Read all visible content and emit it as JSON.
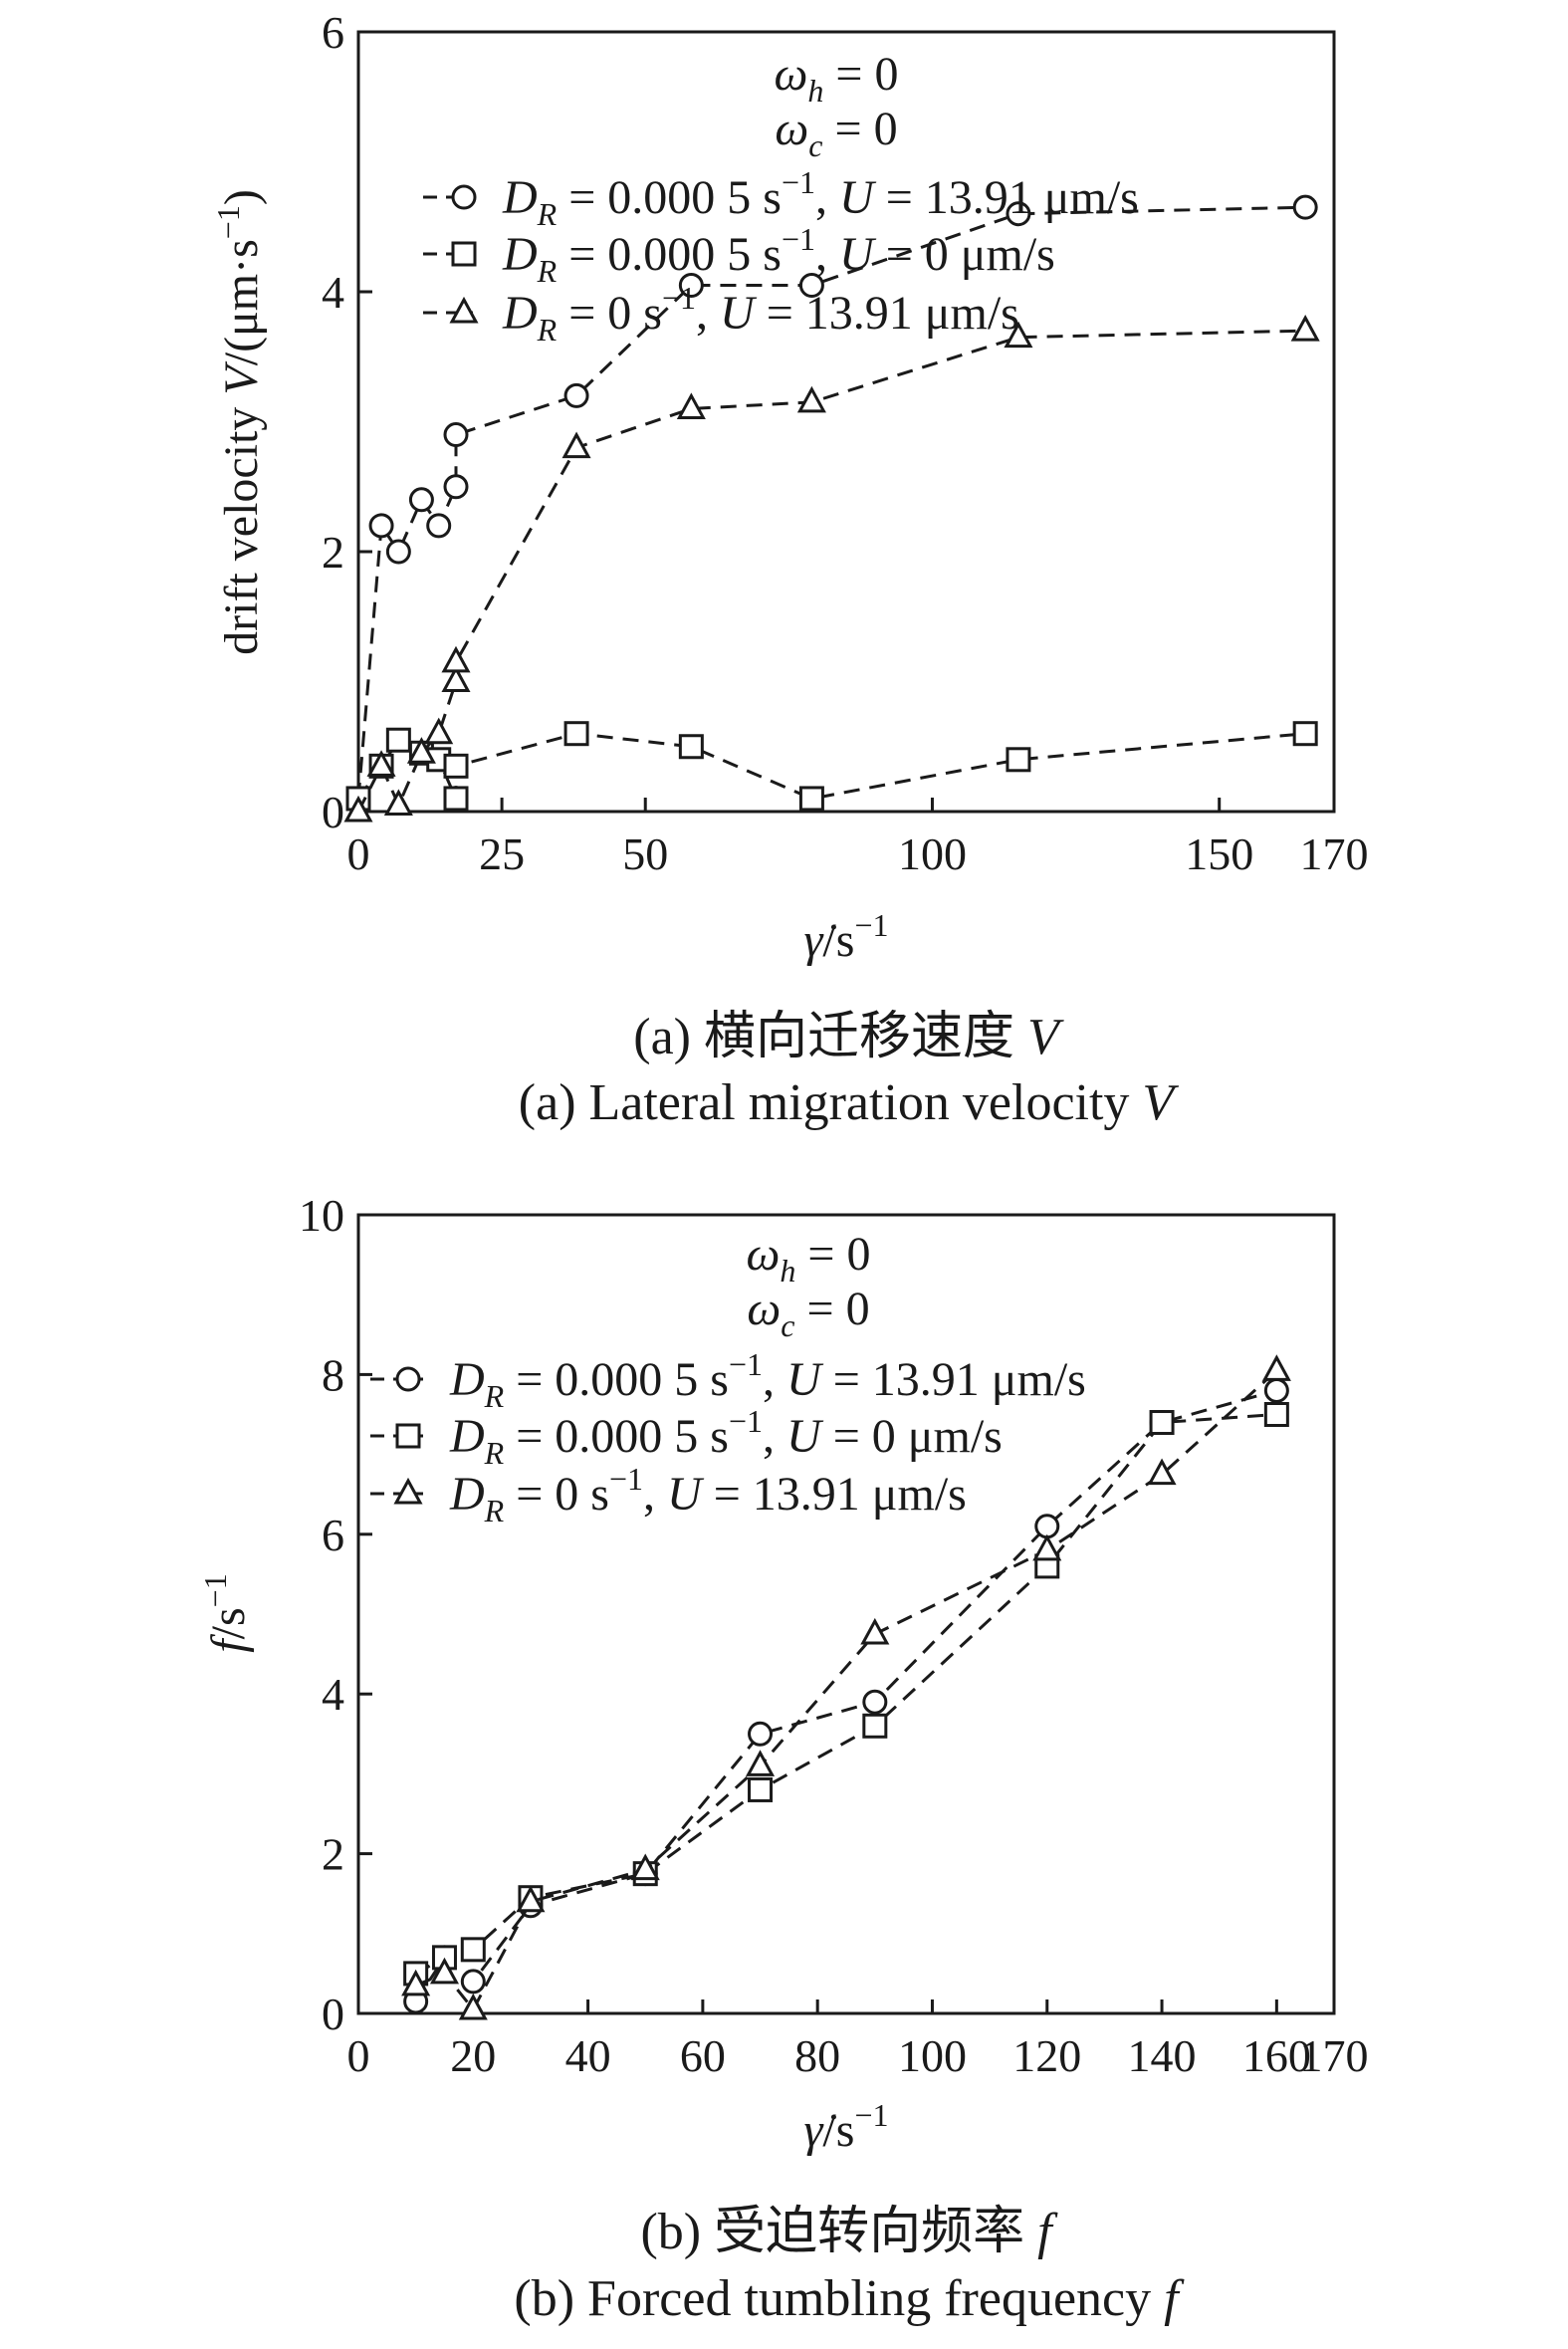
{
  "chart_data": [
    {
      "panel": "a",
      "type": "line",
      "xlabel": "γ̇/s⁻¹",
      "ylabel": "drift velocity V/(μm·s⁻¹)",
      "xlim": [
        0,
        170
      ],
      "ylim": [
        0,
        6
      ],
      "xticks": [
        0,
        25,
        50,
        100,
        150,
        170
      ],
      "yticks": [
        0,
        2,
        4,
        6
      ],
      "legend_position": "top",
      "annotations": [
        "ωh = 0",
        "ωc = 0"
      ],
      "series": [
        {
          "name": "DR = 0.000 5 s⁻¹, U = 13.91 μm/s",
          "marker": "circle",
          "x": [
            0,
            4,
            7,
            11,
            14,
            17,
            17,
            38,
            58,
            79,
            115,
            165
          ],
          "y": [
            0.1,
            2.2,
            2.0,
            2.4,
            2.2,
            2.5,
            2.9,
            3.2,
            4.05,
            4.05,
            4.6,
            4.65
          ]
        },
        {
          "name": "DR = 0.000 5 s⁻¹, U = 0 μm/s",
          "marker": "square",
          "x": [
            0,
            4,
            7,
            11,
            14,
            17,
            17,
            38,
            58,
            79,
            115,
            165
          ],
          "y": [
            0.1,
            0.35,
            0.55,
            0.45,
            0.4,
            0.1,
            0.35,
            0.6,
            0.5,
            0.1,
            0.4,
            0.6
          ]
        },
        {
          "name": "DR = 0 s⁻¹, U = 13.91 μm/s",
          "marker": "triangle",
          "x": [
            0,
            4,
            7,
            11,
            14,
            17,
            17,
            38,
            58,
            79,
            115,
            165
          ],
          "y": [
            0.0,
            0.35,
            0.05,
            0.45,
            0.6,
            1.0,
            1.15,
            2.8,
            3.1,
            3.15,
            3.65,
            3.7
          ]
        }
      ],
      "caption_cn": "(a) 横向迁移速度 V",
      "caption_en": "(a) Lateral migration velocity V"
    },
    {
      "panel": "b",
      "type": "line",
      "xlabel": "γ̇/s⁻¹",
      "ylabel": "f/s⁻¹",
      "xlim": [
        0,
        170
      ],
      "ylim": [
        0,
        10
      ],
      "xticks": [
        0,
        20,
        40,
        60,
        80,
        100,
        120,
        140,
        160,
        170
      ],
      "yticks": [
        0,
        2,
        4,
        6,
        8,
        10
      ],
      "legend_position": "top-left",
      "annotations": [
        "ωh = 0",
        "ωc = 0"
      ],
      "series": [
        {
          "name": "DR = 0.000 5 s⁻¹, U = 13.91 μm/s",
          "marker": "circle",
          "x": [
            10,
            15,
            20,
            30,
            50,
            70,
            90,
            120,
            140,
            160
          ],
          "y": [
            0.15,
            0.7,
            0.4,
            1.35,
            1.75,
            3.5,
            3.9,
            6.1,
            7.4,
            7.8
          ]
        },
        {
          "name": "DR = 0.000 5 s⁻¹, U = 0 μm/s",
          "marker": "square",
          "x": [
            10,
            15,
            20,
            30,
            50,
            70,
            90,
            120,
            140,
            160
          ],
          "y": [
            0.5,
            0.7,
            0.8,
            1.45,
            1.75,
            2.8,
            3.6,
            5.6,
            7.4,
            7.5
          ]
        },
        {
          "name": "DR = 0 s⁻¹, U = 13.91 μm/s",
          "marker": "triangle",
          "x": [
            10,
            15,
            20,
            30,
            50,
            70,
            90,
            120,
            140,
            160
          ],
          "y": [
            0.35,
            0.5,
            0.05,
            1.4,
            1.8,
            3.1,
            4.75,
            5.8,
            6.75,
            8.05
          ]
        }
      ],
      "caption_cn": "(b) 受迫转向频率 f",
      "caption_en": "(b) Forced tumbling frequency f"
    }
  ]
}
